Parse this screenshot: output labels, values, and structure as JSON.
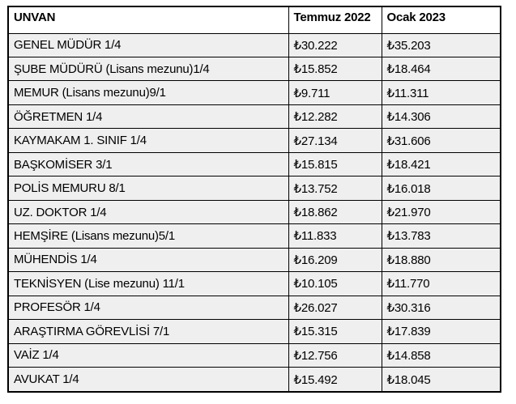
{
  "table": {
    "columns": [
      "UNVAN",
      "Temmuz 2022",
      "Ocak 2023"
    ],
    "rows": [
      {
        "unvan": "GENEL MÜDÜR 1/4",
        "temmuz_2022": "₺30.222",
        "ocak_2023": "₺35.203"
      },
      {
        "unvan": "ŞUBE MÜDÜRÜ (Lisans mezunu)1/4",
        "temmuz_2022": "₺15.852",
        "ocak_2023": "₺18.464"
      },
      {
        "unvan": "MEMUR (Lisans mezunu)9/1",
        "temmuz_2022": "₺9.711",
        "ocak_2023": "₺11.311"
      },
      {
        "unvan": "ÖĞRETMEN 1/4",
        "temmuz_2022": "₺12.282",
        "ocak_2023": "₺14.306"
      },
      {
        "unvan": "KAYMAKAM 1. SINIF 1/4",
        "temmuz_2022": "₺27.134",
        "ocak_2023": "₺31.606"
      },
      {
        "unvan": "BAŞKOMİSER 3/1",
        "temmuz_2022": "₺15.815",
        "ocak_2023": "₺18.421"
      },
      {
        "unvan": "POLİS MEMURU 8/1",
        "temmuz_2022": "₺13.752",
        "ocak_2023": "₺16.018"
      },
      {
        "unvan": "UZ. DOKTOR 1/4",
        "temmuz_2022": "₺18.862",
        "ocak_2023": "₺21.970"
      },
      {
        "unvan": "HEMŞİRE (Lisans mezunu)5/1",
        "temmuz_2022": "₺11.833",
        "ocak_2023": "₺13.783"
      },
      {
        "unvan": "MÜHENDİS 1/4",
        "temmuz_2022": "₺16.209",
        "ocak_2023": "₺18.880"
      },
      {
        "unvan": "TEKNİSYEN (Lise mezunu) 11/1",
        "temmuz_2022": "₺10.105",
        "ocak_2023": "₺11.770"
      },
      {
        "unvan": "PROFESÖR 1/4",
        "temmuz_2022": "₺26.027",
        "ocak_2023": "₺30.316"
      },
      {
        "unvan": "ARAŞTIRMA GÖREVLİSİ 7/1",
        "temmuz_2022": "₺15.315",
        "ocak_2023": "₺17.839"
      },
      {
        "unvan": "VAİZ 1/4",
        "temmuz_2022": "₺12.756",
        "ocak_2023": "₺14.858"
      },
      {
        "unvan": "AVUKAT 1/4",
        "temmuz_2022": "₺15.492",
        "ocak_2023": "₺18.045"
      }
    ]
  },
  "currency_symbol": "₺",
  "colors": {
    "header_bg": "#ffffff",
    "row_bg": "#efefef",
    "border": "#000000",
    "text": "#000000"
  }
}
